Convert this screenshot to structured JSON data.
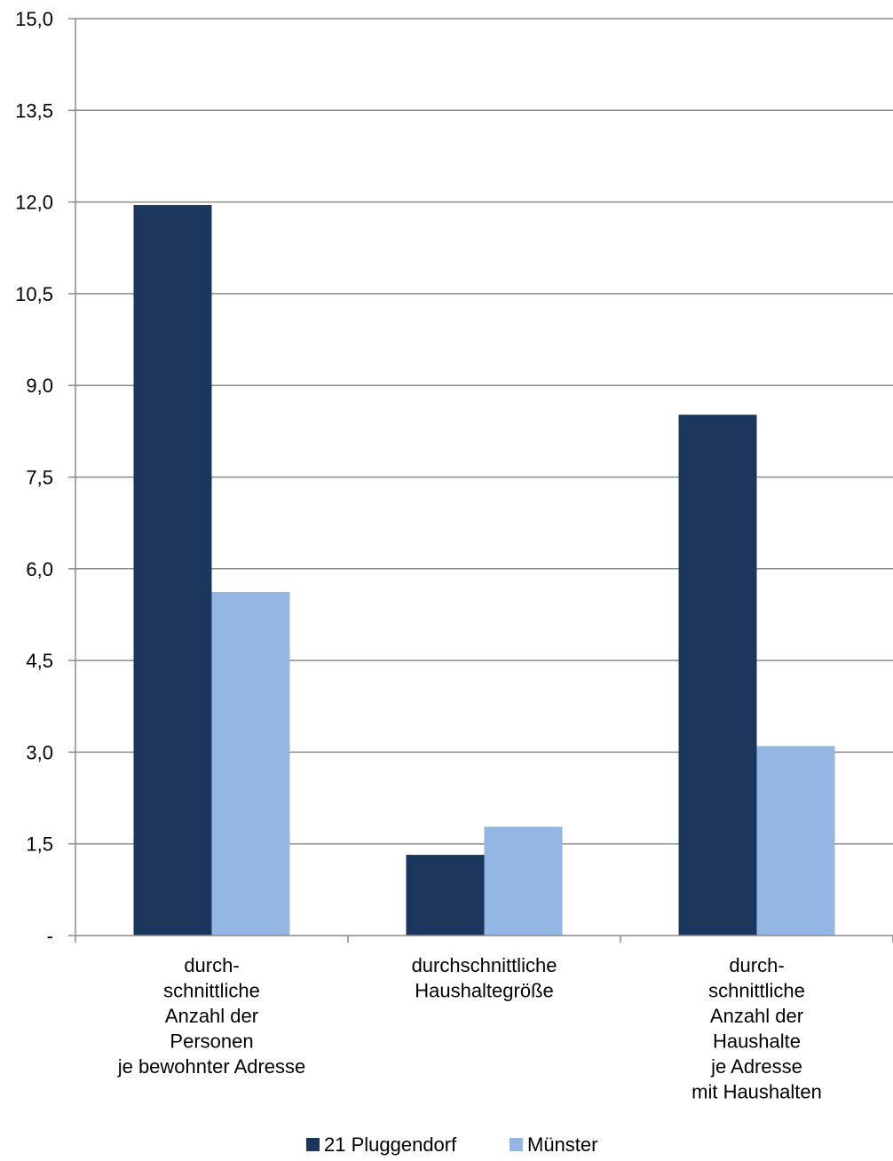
{
  "chart_data": {
    "type": "bar",
    "categories": [
      [
        "durch-",
        "schnittliche",
        "Anzahl der",
        "Personen",
        "je bewohnter Adresse"
      ],
      [
        "durchschnittliche",
        "Haushaltegröße"
      ],
      [
        "durch-",
        "schnittliche",
        "Anzahl der",
        "Haushalte",
        "je Adresse",
        "mit Haushalten"
      ]
    ],
    "series": [
      {
        "name": "21 Pluggendorf",
        "color": "#1b365d",
        "values": [
          11.95,
          1.32,
          8.52
        ]
      },
      {
        "name": "Münster",
        "color": "#93b6e2",
        "values": [
          5.62,
          1.78,
          3.1
        ]
      }
    ],
    "ylim": [
      0,
      15
    ],
    "yticks": [
      0,
      1.5,
      3,
      4.5,
      6,
      7.5,
      9,
      10.5,
      12,
      13.5,
      15
    ],
    "ytick_labels": [
      "-",
      "1,5",
      "3,0",
      "4,5",
      "6,0",
      "7,5",
      "9,0",
      "10,5",
      "12,0",
      "13,5",
      "15,0"
    ],
    "grid": true,
    "legend_position": "bottom",
    "title": "",
    "xlabel": "",
    "ylabel": ""
  }
}
